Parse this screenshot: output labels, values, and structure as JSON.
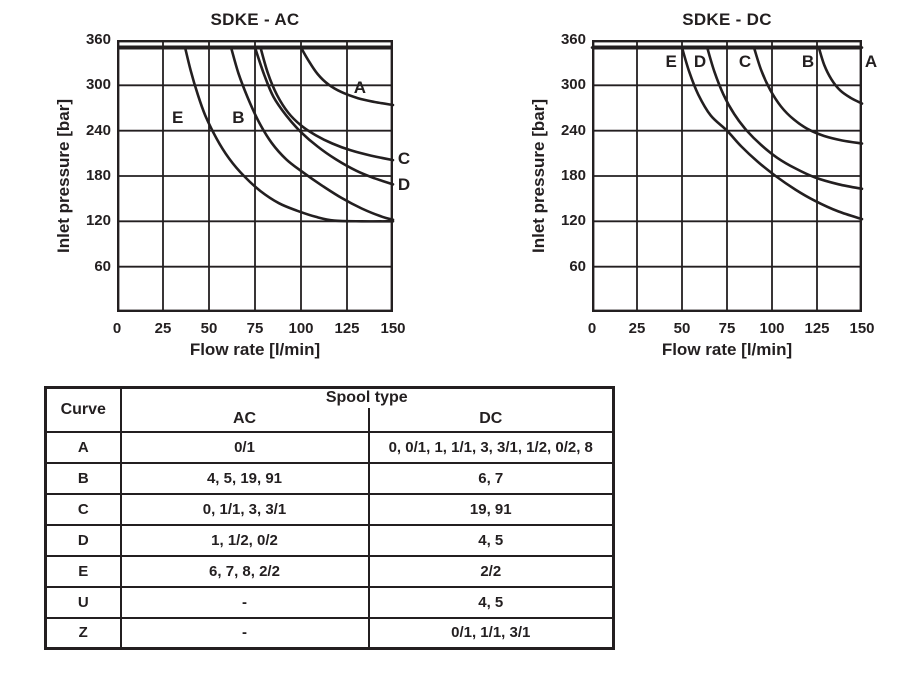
{
  "colors": {
    "ink": "#231f20",
    "background": "#ffffff"
  },
  "chart_data": [
    {
      "type": "line",
      "title": "SDKE - AC",
      "xlabel": "Flow rate [l/min]",
      "ylabel": "Inlet pressure [bar]",
      "xlim": [
        0,
        150
      ],
      "ylim": [
        0,
        360
      ],
      "xticks": [
        0,
        25,
        50,
        75,
        100,
        125,
        150
      ],
      "yticks": [
        360,
        300,
        240,
        180,
        120,
        60
      ],
      "grid": true,
      "pressure_limit_line_bar": 350,
      "series": [
        {
          "name": "A",
          "label_at": [
            132,
            297
          ],
          "points": [
            [
              100,
              350
            ],
            [
              104,
              333
            ],
            [
              109,
              315
            ],
            [
              115,
              301
            ],
            [
              122,
              291
            ],
            [
              131,
              283
            ],
            [
              140,
              278
            ],
            [
              150,
              274
            ]
          ]
        },
        {
          "name": "B",
          "label_at": [
            66,
            257
          ],
          "points": [
            [
              62,
              350
            ],
            [
              66,
              316
            ],
            [
              71,
              284
            ],
            [
              77,
              252
            ],
            [
              84,
              224
            ],
            [
              92,
              202
            ],
            [
              101,
              185
            ],
            [
              111,
              168
            ],
            [
              122,
              151
            ],
            [
              133,
              137
            ],
            [
              143,
              127
            ],
            [
              150,
              122
            ]
          ]
        },
        {
          "name": "C",
          "label_at": [
            156,
            202
          ],
          "points": [
            [
              78,
              350
            ],
            [
              82,
              316
            ],
            [
              87,
              287
            ],
            [
              93,
              264
            ],
            [
              100,
              247
            ],
            [
              108,
              234
            ],
            [
              117,
              223
            ],
            [
              127,
              214
            ],
            [
              138,
              207
            ],
            [
              150,
              201
            ]
          ]
        },
        {
          "name": "D",
          "label_at": [
            156,
            168
          ],
          "points": [
            [
              75,
              350
            ],
            [
              80,
              314
            ],
            [
              85,
              285
            ],
            [
              92,
              260
            ],
            [
              100,
              238
            ],
            [
              109,
              219
            ],
            [
              119,
              202
            ],
            [
              130,
              187
            ],
            [
              140,
              177
            ],
            [
              150,
              169
            ]
          ]
        },
        {
          "name": "E",
          "label_at": [
            33,
            257
          ],
          "points": [
            [
              37,
              350
            ],
            [
              40,
              320
            ],
            [
              44,
              287
            ],
            [
              48,
              260
            ],
            [
              54,
              230
            ],
            [
              61,
              203
            ],
            [
              69,
              180
            ],
            [
              78,
              160
            ],
            [
              88,
              144
            ],
            [
              98,
              134
            ],
            [
              108,
              126
            ],
            [
              118,
              121
            ],
            [
              133,
              120
            ],
            [
              150,
              120
            ]
          ]
        }
      ]
    },
    {
      "type": "line",
      "title": "SDKE - DC",
      "xlabel": "Flow rate [l/min]",
      "ylabel": "Inlet pressure [bar]",
      "xlim": [
        0,
        150
      ],
      "ylim": [
        0,
        360
      ],
      "xticks": [
        0,
        25,
        50,
        75,
        100,
        125,
        150
      ],
      "yticks": [
        360,
        300,
        240,
        180,
        120,
        60
      ],
      "grid": true,
      "pressure_limit_line_bar": 350,
      "series": [
        {
          "name": "A",
          "label_at": [
            155,
            331
          ],
          "points": [
            [
              0,
              350
            ],
            [
              150,
              350
            ]
          ]
        },
        {
          "name": "B",
          "label_at": [
            120,
            331
          ],
          "points": [
            [
              126,
              350
            ],
            [
              129,
              327
            ],
            [
              133,
              308
            ],
            [
              138,
              293
            ],
            [
              144,
              283
            ],
            [
              150,
              276
            ]
          ]
        },
        {
          "name": "C",
          "label_at": [
            85,
            331
          ],
          "points": [
            [
              90,
              350
            ],
            [
              94,
              320
            ],
            [
              99,
              294
            ],
            [
              105,
              272
            ],
            [
              112,
              255
            ],
            [
              120,
              242
            ],
            [
              129,
              233
            ],
            [
              139,
              227
            ],
            [
              150,
              223
            ]
          ]
        },
        {
          "name": "D",
          "label_at": [
            60,
            331
          ],
          "points": [
            [
              64,
              350
            ],
            [
              68,
              318
            ],
            [
              73,
              288
            ],
            [
              79,
              262
            ],
            [
              86,
              240
            ],
            [
              94,
              221
            ],
            [
              103,
              204
            ],
            [
              113,
              190
            ],
            [
              124,
              178
            ],
            [
              137,
              169
            ],
            [
              150,
              163
            ]
          ]
        },
        {
          "name": "E",
          "label_at": [
            44,
            331
          ],
          "points": [
            [
              50,
              350
            ],
            [
              54,
              318
            ],
            [
              59,
              288
            ],
            [
              66,
              260
            ],
            [
              75,
              240
            ],
            [
              83,
              219
            ],
            [
              92,
              199
            ],
            [
              102,
              180
            ],
            [
              113,
              162
            ],
            [
              124,
              147
            ],
            [
              137,
              133
            ],
            [
              150,
              123
            ]
          ]
        }
      ]
    }
  ],
  "table": {
    "col1_header": "Curve",
    "group_header": "Spool type",
    "sub_headers": [
      "AC",
      "DC"
    ],
    "rows": [
      {
        "curve": "A",
        "ac": "0/1",
        "dc": "0, 0/1, 1, 1/1, 3, 3/1, 1/2, 0/2, 8"
      },
      {
        "curve": "B",
        "ac": "4, 5, 19, 91",
        "dc": "6, 7"
      },
      {
        "curve": "C",
        "ac": "0, 1/1, 3, 3/1",
        "dc": "19, 91"
      },
      {
        "curve": "D",
        "ac": "1, 1/2, 0/2",
        "dc": "4, 5"
      },
      {
        "curve": "E",
        "ac": "6, 7, 8, 2/2",
        "dc": "2/2"
      },
      {
        "curve": "U",
        "ac": "-",
        "dc": "4, 5"
      },
      {
        "curve": "Z",
        "ac": "-",
        "dc": "0/1, 1/1, 3/1"
      }
    ]
  }
}
